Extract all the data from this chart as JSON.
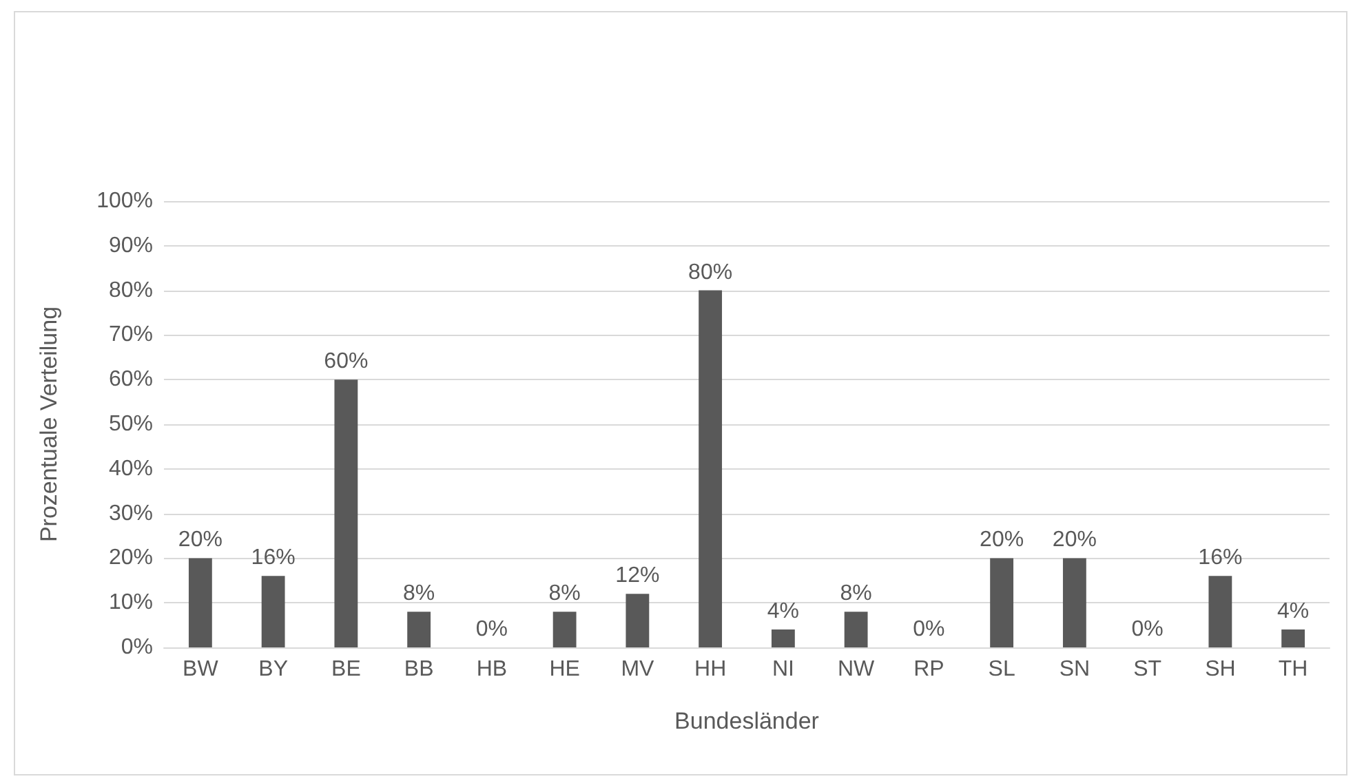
{
  "chart_data": {
    "type": "bar",
    "xlabel": "Bundesländer",
    "ylabel": "Prozentuale Verteilung",
    "categories": [
      "BW",
      "BY",
      "BE",
      "BB",
      "HB",
      "HE",
      "MV",
      "HH",
      "NI",
      "NW",
      "RP",
      "SL",
      "SN",
      "ST",
      "SH",
      "TH"
    ],
    "values": [
      20,
      16,
      60,
      8,
      0,
      8,
      12,
      80,
      4,
      8,
      0,
      20,
      20,
      0,
      16,
      4
    ],
    "value_labels": [
      "20%",
      "16%",
      "60%",
      "8%",
      "0%",
      "8%",
      "12%",
      "80%",
      "4%",
      "8%",
      "0%",
      "20%",
      "20%",
      "0%",
      "16%",
      "4%"
    ],
    "color": "#595959",
    "ylim": [
      0,
      100
    ],
    "yticks": [
      {
        "value": 0,
        "label": "0%"
      },
      {
        "value": 10,
        "label": "10%"
      },
      {
        "value": 20,
        "label": "20%"
      },
      {
        "value": 30,
        "label": "30%"
      },
      {
        "value": 40,
        "label": "40%"
      },
      {
        "value": 50,
        "label": "50%"
      },
      {
        "value": 60,
        "label": "60%"
      },
      {
        "value": 70,
        "label": "70%"
      },
      {
        "value": 80,
        "label": "80%"
      },
      {
        "value": 90,
        "label": "90%"
      },
      {
        "value": 100,
        "label": "100%"
      }
    ],
    "grid": "y"
  }
}
